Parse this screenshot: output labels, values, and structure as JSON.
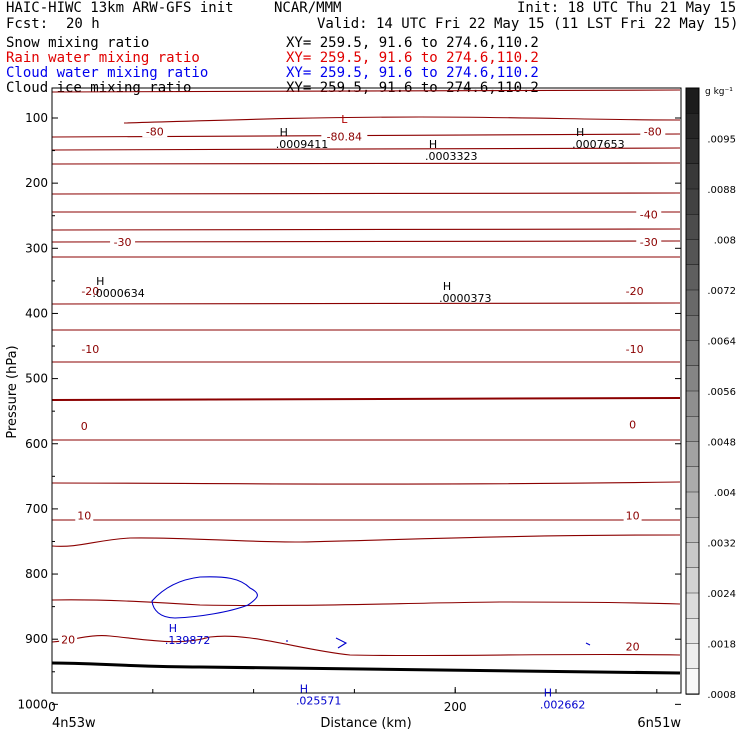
{
  "header": {
    "title_left": "HAIC-HIWC 13km ARW-GFS init",
    "org": "NCAR/MMM",
    "init": "Init: 18 UTC Thu 21 May 15",
    "fcst_label": "Fcst:",
    "fcst_value": "20 h",
    "valid": "Valid: 14 UTC Fri 22 May 15 (11 LST Fri 22 May 15)"
  },
  "fields": [
    {
      "name": "Snow mixing ratio",
      "xy": "XY= 259.5, 91.6 to 274.6,110.2",
      "color": "#000000"
    },
    {
      "name": "Rain water mixing ratio",
      "xy": "XY= 259.5, 91.6 to 274.6,110.2",
      "color": "#ff0000"
    },
    {
      "name": "Cloud water mixing ratio",
      "xy": "XY= 259.5, 91.6 to 274.6,110.2",
      "color": "#0000ff"
    },
    {
      "name": "Cloud ice mixing ratio",
      "xy": "XY= 259.5, 91.6 to 274.6,110.2",
      "color": "#000000"
    }
  ],
  "chart_data": {
    "type": "cross-section",
    "xlabel": "Distance (km)",
    "ylabel": "Pressure (hPa)",
    "x_ticks": [
      0,
      200
    ],
    "y_ticks": [
      100,
      200,
      300,
      400,
      500,
      600,
      700,
      800,
      900,
      1000
    ],
    "xlim": [
      0,
      312
    ],
    "ylim": [
      1030,
      70
    ],
    "endpoints": {
      "left": "4n53w",
      "right": "6n51w"
    },
    "colorbar": {
      "unit": "g kg⁻¹",
      "labels": [
        ".0095",
        ".0088",
        ".008",
        ".0072",
        ".0064",
        ".0056",
        ".0048",
        ".004",
        ".0032",
        ".0024",
        ".0018",
        ".0008"
      ]
    },
    "temperature_contour_labels": [
      {
        "text": "-80.84",
        "x": 145,
        "p": 130,
        "anchor": "middle"
      },
      {
        "text": "-80",
        "x": 51,
        "p": 122,
        "anchor": "middle"
      },
      {
        "text": "-80",
        "x": 298,
        "p": 122,
        "anchor": "middle"
      },
      {
        "text": "-40",
        "x": 296,
        "p": 250,
        "anchor": "middle"
      },
      {
        "text": "-30",
        "x": 35,
        "p": 292,
        "anchor": "middle"
      },
      {
        "text": "-30",
        "x": 296,
        "p": 292,
        "anchor": "middle"
      },
      {
        "text": "-20",
        "x": 19,
        "p": 367,
        "anchor": "middle"
      },
      {
        "text": "-20",
        "x": 289,
        "p": 367,
        "anchor": "middle"
      },
      {
        "text": "-10",
        "x": 19,
        "p": 456,
        "anchor": "middle"
      },
      {
        "text": "-10",
        "x": 289,
        "p": 456,
        "anchor": "middle"
      },
      {
        "text": "0",
        "x": 16,
        "p": 574,
        "anchor": "middle"
      },
      {
        "text": "0",
        "x": 288,
        "p": 572,
        "anchor": "middle"
      },
      {
        "text": "10",
        "x": 16,
        "p": 712,
        "anchor": "middle"
      },
      {
        "text": "10",
        "x": 288,
        "p": 712,
        "anchor": "middle"
      },
      {
        "text": "20",
        "x": 8,
        "p": 902,
        "anchor": "middle"
      },
      {
        "text": "20",
        "x": 288,
        "p": 913,
        "anchor": "middle"
      }
    ],
    "max_min_labels": [
      {
        "mark": "L",
        "value": "",
        "x": 141,
        "p": 108,
        "color": "#b00000"
      },
      {
        "mark": "H",
        "value": ".0009411",
        "x": 111,
        "p": 128,
        "color": "#000000"
      },
      {
        "mark": "H",
        "value": ".0003323",
        "x": 185,
        "p": 146,
        "color": "#000000"
      },
      {
        "mark": "H",
        "value": ".0007653",
        "x": 258,
        "p": 128,
        "color": "#000000"
      },
      {
        "mark": "H",
        "value": ".0000634",
        "x": 20,
        "p": 356,
        "color": "#000000"
      },
      {
        "mark": "H",
        "value": ".0000373",
        "x": 192,
        "p": 364,
        "color": "#000000"
      },
      {
        "mark": "H",
        "value": ".139872",
        "x": 56,
        "p": 889,
        "color": "#0000cc"
      },
      {
        "mark": "H",
        "value": ".025571",
        "x": 121,
        "p": 982,
        "color": "#0000cc"
      },
      {
        "mark": "H",
        "value": ".002662",
        "x": 242,
        "p": 988,
        "color": "#0000cc"
      }
    ]
  }
}
